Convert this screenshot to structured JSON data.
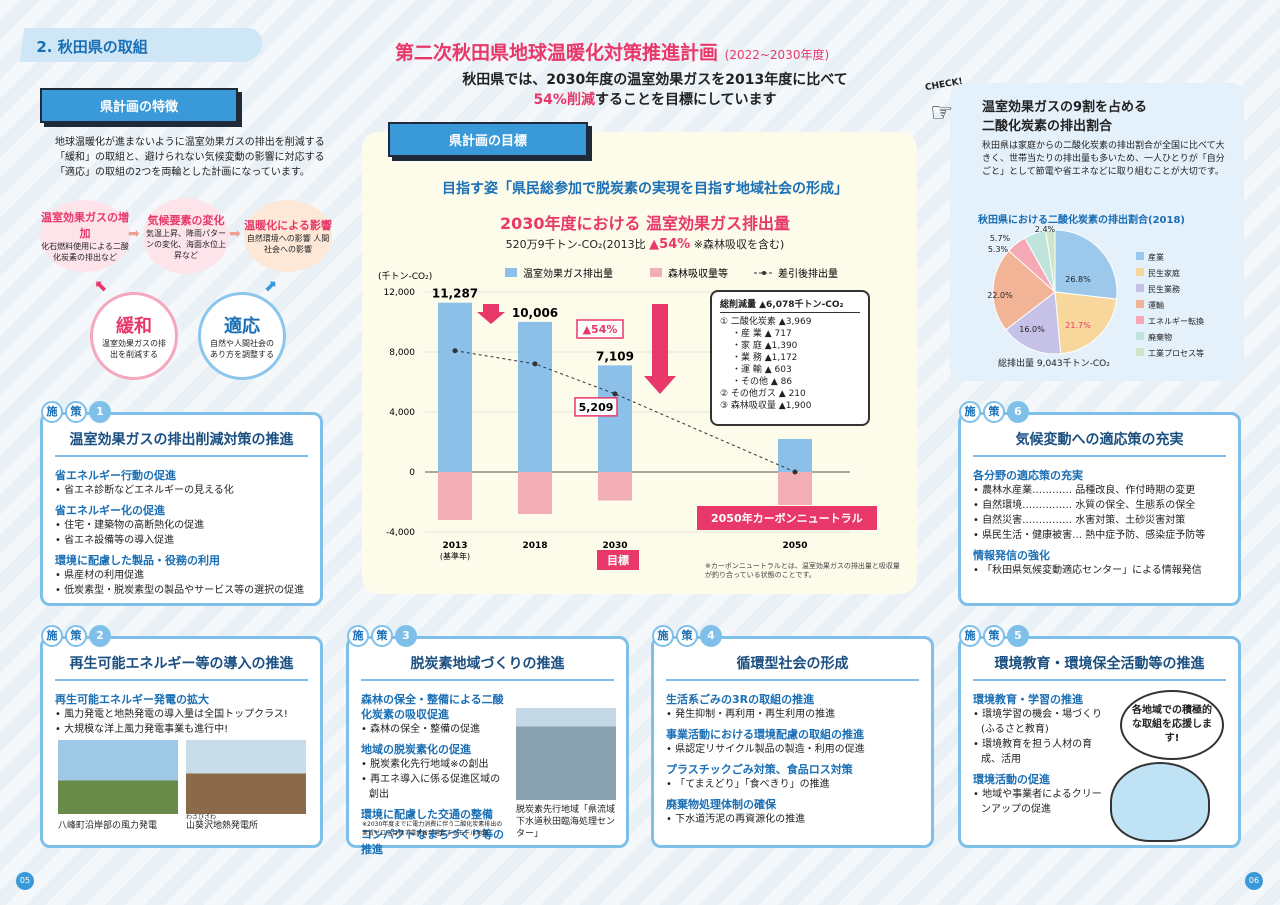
{
  "section_tag": "2. 秋田県の取組",
  "header": {
    "title": "第二次秋田県地球温暖化対策推進計画",
    "title_period": "(2022~2030年度)",
    "sub_line1": "秋田県では、2030年度の温室効果ガスを2013年度に比べて",
    "sub_pct": "54%削減",
    "sub_rest": "することを目標にしています"
  },
  "features": {
    "label": "県計画の特徴",
    "text": "地球温暖化が進まないように温室効果ガスの排出を削減する「緩和」の取組と、避けられない気候変動の影響に対応する「適応」の取組の2つを両輪とした計画になっています。",
    "b1_title": "温室効果ガスの増加",
    "b1_text": "化石燃料使用による二酸化炭素の排出など",
    "b2_title": "気候要素の変化",
    "b2_text": "気温上昇、降雨パターンの変化、海面水位上昇など",
    "b3_title": "温暖化による影響",
    "b3_text": "自然環境への影響 人間社会への影響",
    "kanwa": "緩和",
    "kanwa_text": "温室効果ガスの排出を削減する",
    "tekiou": "適応",
    "tekiou_text": "自然や人間社会のあり方を調整する"
  },
  "goal": {
    "label": "県計画の目標",
    "vision": "目指す姿「県民総参加で脱炭素の実現を目指す地域社会の形成」",
    "heading": "2030年度における 温室効果ガス排出量",
    "amount": "520万9千トン-CO₂(2013比",
    "amount_pct": "▲54%",
    "amount_note": "※森林吸収を含む)",
    "target_label": "目標",
    "neutral": "2050年カーボンニュートラル",
    "pct_label": "▲54%",
    "footnote": "※カーボンニュートラルとは、温室効果ガスの排出量と吸収量が釣り合っている状態のことです。",
    "breakdown": {
      "title": "総削減量 ▲6,078千トン-CO₂",
      "rows": [
        "① 二酸化炭素 ▲3,969",
        "・産 業 ▲ 717",
        "・家 庭 ▲1,390",
        "・業 務 ▲1,172",
        "・運 輸 ▲ 603",
        "・その他 ▲ 86",
        "② その他ガス ▲ 210",
        "③ 森林吸収量 ▲1,900"
      ]
    }
  },
  "chart_data": [
    {
      "type": "bar",
      "ylabel": "(千トン-CO₂)",
      "ylim": [
        -4000,
        12000
      ],
      "yticks": [
        "12,000",
        "8,000",
        "4,000",
        "0",
        "-4,000"
      ],
      "categories": [
        "2013",
        "2018",
        "2030",
        "2050"
      ],
      "cat_sub": [
        "(基準年)",
        "",
        "",
        ""
      ],
      "series": [
        {
          "name": "温室効果ガス排出量",
          "values": [
            11287,
            10006,
            7109,
            2200
          ],
          "color": "#8cc0e8"
        },
        {
          "name": "森林吸収量等",
          "values": [
            -3200,
            -2800,
            -1900,
            -2200
          ],
          "color": "#f1aeb4"
        },
        {
          "name": "差引後排出量",
          "values": [
            8087,
            7206,
            5209,
            0
          ],
          "color": "#333"
        }
      ],
      "labels": [
        "11,287",
        "10,006",
        "7,109",
        "5,209"
      ]
    },
    {
      "type": "pie",
      "title": "秋田県における二酸化炭素の排出割合(2018)",
      "total": "総排出量 9,043千トン-CO₂",
      "categories": [
        "産業",
        "民生家庭",
        "民生業務",
        "運輸",
        "エネルギー転換",
        "廃棄物",
        "工業プロセス等"
      ],
      "values": [
        26.8,
        21.7,
        16.0,
        22.0,
        5.3,
        5.7,
        2.4
      ],
      "colors": [
        "#9cc8ec",
        "#f7d79b",
        "#c6c1e6",
        "#f2b497",
        "#f4a9b5",
        "#bfe4dc",
        "#cde6c8"
      ]
    }
  ],
  "check": {
    "tag": "CHECK!",
    "title1": "温室効果ガスの9割を占める",
    "title2": "二酸化炭素の排出割合",
    "text": "秋田県は家庭からの二酸化炭素の排出割合が全国に比べて大きく、世帯当たりの排出量も多いため、一人ひとりが「自分ごと」として節電や省エネなどに取り組むことが大切です。"
  },
  "badge_word": [
    "施",
    "策"
  ],
  "p1": {
    "n": "1",
    "title": "温室効果ガスの排出削減対策の推進",
    "groups": [
      {
        "h": "省エネルギー行動の促進",
        "items": [
          "省エネ診断などエネルギーの見える化"
        ]
      },
      {
        "h": "省エネルギー化の促進",
        "items": [
          "住宅・建築物の高断熱化の促進",
          "省エネ設備等の導入促進"
        ]
      },
      {
        "h": "環境に配慮した製品・役務の利用",
        "items": [
          "県産材の利用促進",
          "低炭素型・脱炭素型の製品やサービス等の選択の促進"
        ]
      }
    ]
  },
  "p6": {
    "n": "6",
    "title": "気候変動への適応策の充実",
    "groups": [
      {
        "h": "各分野の適応策の充実",
        "items": [
          "農林水産業………… 品種改良、作付時期の変更",
          "自然環境…………… 水質の保全、生態系の保全",
          "自然災害…………… 水害対策、土砂災害対策",
          "県民生活・健康被害… 熱中症予防、感染症予防等"
        ]
      },
      {
        "h": "情報発信の強化",
        "items": [
          "「秋田県気候変動適応センター」による情報発信"
        ]
      }
    ]
  },
  "p2": {
    "n": "2",
    "title": "再生可能エネルギー等の導入の推進",
    "groups": [
      {
        "h": "再生可能エネルギー発電の拡大",
        "items": [
          "風力発電と地熱発電の導入量は全国トップクラス!",
          "大規模な洋上風力発電事業も進行中!"
        ]
      }
    ],
    "cap1": "八峰町沿岸部の風力発電",
    "cap2": "山葵沢地熱発電所",
    "cap2_ruby": "わさびざわ"
  },
  "p3": {
    "n": "3",
    "title": "脱炭素地域づくりの推進",
    "groups": [
      {
        "h": "森林の保全・整備による二酸化炭素の吸収促進",
        "items": [
          "森林の保全・整備の促進"
        ]
      },
      {
        "h": "地域の脱炭素化の促進",
        "items": [
          "脱炭素化先行地域※の創出",
          "再エネ導入に係る促進区域の創出"
        ]
      },
      {
        "h": "環境に配慮した交通の整備",
        "items": []
      },
      {
        "h": "コンパクトなまちづくり等の推進",
        "items": []
      }
    ],
    "note": "※2030年度までに電力消費に伴う二酸化炭素排出の実質ゼロを目指す環境省が選定するモデル地域",
    "cap": "脱炭素先行地域「県流域下水道秋田臨海処理センター」"
  },
  "p4": {
    "n": "4",
    "title": "循環型社会の形成",
    "groups": [
      {
        "h": "生活系ごみの3Rの取組の推進",
        "items": [
          "発生抑制・再利用・再生利用の推進"
        ]
      },
      {
        "h": "事業活動における環境配慮の取組の推進",
        "items": [
          "県認定リサイクル製品の製造・利用の促進"
        ]
      },
      {
        "h": "プラスチックごみ対策、食品ロス対策",
        "items": [
          "「てまえどり」「食べきり」の推進"
        ]
      },
      {
        "h": "廃棄物処理体制の確保",
        "items": [
          "下水道汚泥の再資源化の推進"
        ]
      }
    ]
  },
  "p5": {
    "n": "5",
    "title": "環境教育・環境保全活動等の推進",
    "groups": [
      {
        "h": "環境教育・学習の推進",
        "items": [
          "環境学習の機会・場づくり(ふるさと教育)",
          "環境教育を担う人材の育成、活用"
        ]
      },
      {
        "h": "環境活動の促進",
        "items": [
          "地域や事業者によるクリーンアップの促進"
        ]
      }
    ],
    "speech": "各地域での積極的な取組を応援します!"
  },
  "pages": [
    "05",
    "06"
  ]
}
